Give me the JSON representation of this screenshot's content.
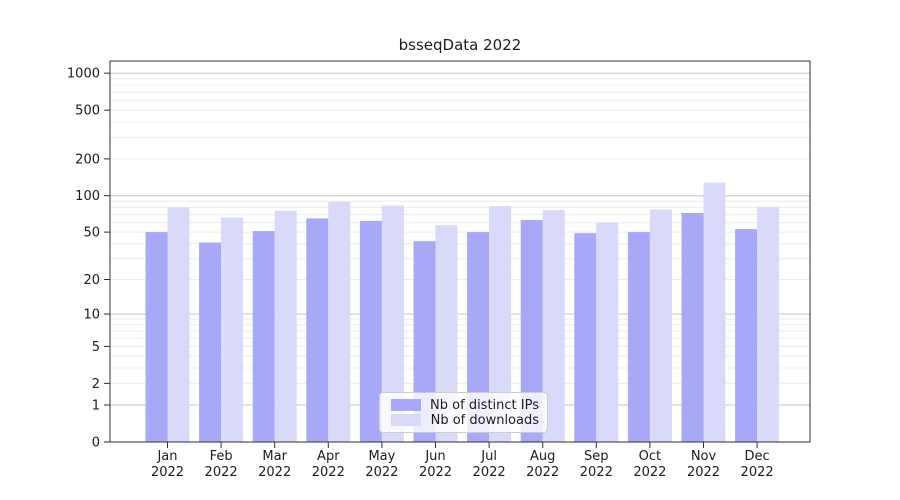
{
  "title": "bsseqData 2022",
  "chart_data": {
    "type": "bar",
    "title": "bsseqData 2022",
    "yscale": "log1p",
    "ylim": [
      0,
      1260
    ],
    "grid": true,
    "legend_position": "lower center inside plot",
    "yticks": [
      1000,
      500,
      200,
      100,
      50,
      20,
      10,
      5,
      2,
      1,
      0
    ],
    "minor_gridlines": [
      2,
      3,
      4,
      5,
      6,
      7,
      8,
      9,
      20,
      30,
      40,
      50,
      60,
      70,
      80,
      90,
      200,
      300,
      400,
      500,
      600,
      700,
      800,
      900
    ],
    "major_gridlines": [
      1,
      10,
      100,
      1000
    ],
    "categories": [
      "Jan 2022",
      "Feb 2022",
      "Mar 2022",
      "Apr 2022",
      "May 2022",
      "Jun 2022",
      "Jul 2022",
      "Aug 2022",
      "Sep 2022",
      "Oct 2022",
      "Nov 2022",
      "Dec 2022"
    ],
    "series": [
      {
        "name": "Nb of distinct IPs",
        "color": "#a8a8f8",
        "values": [
          50,
          41,
          51,
          65,
          62,
          42,
          50,
          63,
          49,
          50,
          72,
          53
        ]
      },
      {
        "name": "Nb of downloads",
        "color": "#d9d9fa",
        "values": [
          80,
          66,
          75,
          89,
          83,
          57,
          82,
          76,
          60,
          77,
          128,
          81
        ]
      }
    ],
    "colors": {
      "frame": "#2f2f2f",
      "grid_major": "#c6c6c6",
      "grid_minor": "#ececec",
      "text": "#1c1c1c"
    }
  }
}
